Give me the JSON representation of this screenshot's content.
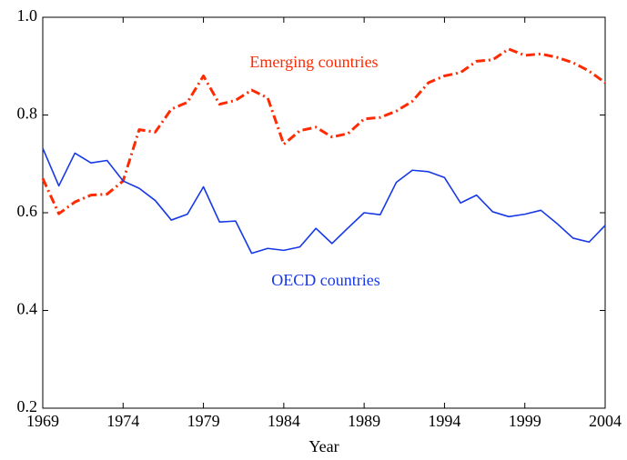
{
  "chart_data": {
    "type": "line",
    "xlabel": "Year",
    "x": [
      1969,
      1970,
      1971,
      1972,
      1973,
      1974,
      1975,
      1976,
      1977,
      1978,
      1979,
      1980,
      1981,
      1982,
      1983,
      1984,
      1985,
      1986,
      1987,
      1988,
      1989,
      1990,
      1991,
      1992,
      1993,
      1994,
      1995,
      1996,
      1997,
      1998,
      1999,
      2000,
      2001,
      2002,
      2003,
      2004
    ],
    "series": [
      {
        "name": "Emerging countries",
        "color": "#ff2a00",
        "style": "dashdot",
        "values": [
          0.67,
          0.598,
          0.622,
          0.636,
          0.638,
          0.665,
          0.77,
          0.765,
          0.812,
          0.826,
          0.88,
          0.822,
          0.83,
          0.851,
          0.835,
          0.74,
          0.768,
          0.775,
          0.755,
          0.762,
          0.792,
          0.795,
          0.808,
          0.828,
          0.866,
          0.88,
          0.887,
          0.91,
          0.913,
          0.935,
          0.922,
          0.925,
          0.918,
          0.907,
          0.89,
          0.866
        ]
      },
      {
        "name": "OECD countries",
        "color": "#1638e6",
        "style": "solid",
        "values": [
          0.732,
          0.655,
          0.722,
          0.702,
          0.707,
          0.665,
          0.65,
          0.625,
          0.585,
          0.597,
          0.653,
          0.581,
          0.583,
          0.517,
          0.527,
          0.523,
          0.53,
          0.568,
          0.537,
          0.569,
          0.6,
          0.596,
          0.662,
          0.687,
          0.684,
          0.672,
          0.62,
          0.636,
          0.602,
          0.592,
          0.597,
          0.605,
          0.578,
          0.548,
          0.54,
          0.574
        ]
      }
    ],
    "xlim": [
      1969,
      2004
    ],
    "xticks": [
      1969,
      1974,
      1979,
      1984,
      1989,
      1994,
      1999,
      2004
    ],
    "ylim": [
      0.2,
      1
    ],
    "yticks": [
      0.2,
      0.4,
      0.6,
      0.8,
      {
        "value": 1,
        "label": "1.0"
      }
    ],
    "grid": false
  }
}
